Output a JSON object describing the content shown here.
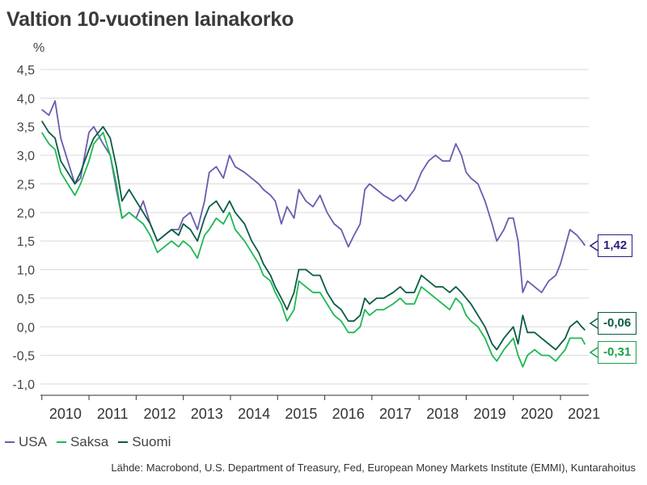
{
  "title": "Valtion 10-vuotinen lainakorko",
  "source": "Lähde: Macrobond, U.S. Department of Treasury, Fed, European Money Markets Institute (EMMI), Kuntarahoitus",
  "chart_data": {
    "type": "line",
    "title": "Valtion 10-vuotinen lainakorko",
    "ylabel": "%",
    "xlabel": "",
    "ylim": [
      -1.0,
      4.5
    ],
    "xlim": [
      2009.97,
      2021.6
    ],
    "yticks": [
      "-1,0",
      "-0,5",
      "0,0",
      "0,5",
      "1,0",
      "1,5",
      "2,0",
      "2,5",
      "3,0",
      "3,5",
      "4,0",
      "4,5"
    ],
    "xticks": [
      "2010",
      "2011",
      "2012",
      "2013",
      "2014",
      "2015",
      "2016",
      "2017",
      "2018",
      "2019",
      "2020",
      "2021"
    ],
    "grid": true,
    "legend": "bottom-left",
    "series": [
      {
        "name": "USA",
        "color": "#6b5bb0",
        "end_label": "1,42",
        "label_color": "#2a1f7a",
        "points": [
          [
            2010.0,
            3.8
          ],
          [
            2010.15,
            3.7
          ],
          [
            2010.28,
            3.95
          ],
          [
            2010.4,
            3.3
          ],
          [
            2010.55,
            2.9
          ],
          [
            2010.7,
            2.5
          ],
          [
            2010.82,
            2.6
          ],
          [
            2011.0,
            3.4
          ],
          [
            2011.1,
            3.5
          ],
          [
            2011.3,
            3.2
          ],
          [
            2011.45,
            3.0
          ],
          [
            2011.58,
            2.4
          ],
          [
            2011.7,
            1.9
          ],
          [
            2011.85,
            2.0
          ],
          [
            2012.0,
            1.9
          ],
          [
            2012.15,
            2.2
          ],
          [
            2012.3,
            1.8
          ],
          [
            2012.45,
            1.5
          ],
          [
            2012.6,
            1.6
          ],
          [
            2012.75,
            1.7
          ],
          [
            2012.9,
            1.7
          ],
          [
            2013.0,
            1.9
          ],
          [
            2013.15,
            2.0
          ],
          [
            2013.3,
            1.7
          ],
          [
            2013.45,
            2.2
          ],
          [
            2013.55,
            2.7
          ],
          [
            2013.7,
            2.8
          ],
          [
            2013.85,
            2.6
          ],
          [
            2013.98,
            3.0
          ],
          [
            2014.1,
            2.8
          ],
          [
            2014.3,
            2.7
          ],
          [
            2014.45,
            2.6
          ],
          [
            2014.6,
            2.5
          ],
          [
            2014.7,
            2.4
          ],
          [
            2014.85,
            2.3
          ],
          [
            2014.95,
            2.2
          ],
          [
            2015.08,
            1.8
          ],
          [
            2015.2,
            2.1
          ],
          [
            2015.35,
            1.9
          ],
          [
            2015.45,
            2.4
          ],
          [
            2015.6,
            2.2
          ],
          [
            2015.75,
            2.1
          ],
          [
            2015.9,
            2.3
          ],
          [
            2016.05,
            2.0
          ],
          [
            2016.2,
            1.8
          ],
          [
            2016.35,
            1.7
          ],
          [
            2016.5,
            1.4
          ],
          [
            2016.62,
            1.6
          ],
          [
            2016.75,
            1.8
          ],
          [
            2016.85,
            2.4
          ],
          [
            2016.95,
            2.5
          ],
          [
            2017.1,
            2.4
          ],
          [
            2017.25,
            2.3
          ],
          [
            2017.45,
            2.2
          ],
          [
            2017.6,
            2.3
          ],
          [
            2017.72,
            2.2
          ],
          [
            2017.9,
            2.4
          ],
          [
            2018.05,
            2.7
          ],
          [
            2018.2,
            2.9
          ],
          [
            2018.35,
            3.0
          ],
          [
            2018.5,
            2.9
          ],
          [
            2018.65,
            2.9
          ],
          [
            2018.78,
            3.2
          ],
          [
            2018.9,
            3.0
          ],
          [
            2019.0,
            2.7
          ],
          [
            2019.1,
            2.6
          ],
          [
            2019.25,
            2.5
          ],
          [
            2019.4,
            2.2
          ],
          [
            2019.55,
            1.8
          ],
          [
            2019.65,
            1.5
          ],
          [
            2019.8,
            1.7
          ],
          [
            2019.9,
            1.9
          ],
          [
            2020.0,
            1.9
          ],
          [
            2020.1,
            1.5
          ],
          [
            2020.2,
            0.6
          ],
          [
            2020.3,
            0.8
          ],
          [
            2020.45,
            0.7
          ],
          [
            2020.6,
            0.6
          ],
          [
            2020.75,
            0.8
          ],
          [
            2020.9,
            0.9
          ],
          [
            2021.0,
            1.1
          ],
          [
            2021.1,
            1.4
          ],
          [
            2021.2,
            1.7
          ],
          [
            2021.35,
            1.6
          ],
          [
            2021.45,
            1.5
          ],
          [
            2021.52,
            1.42
          ]
        ]
      },
      {
        "name": "Saksa",
        "color": "#1db954",
        "end_label": "-0,31",
        "label_color": "#1aa04a",
        "points": [
          [
            2010.0,
            3.4
          ],
          [
            2010.15,
            3.2
          ],
          [
            2010.28,
            3.1
          ],
          [
            2010.4,
            2.7
          ],
          [
            2010.55,
            2.5
          ],
          [
            2010.7,
            2.3
          ],
          [
            2010.82,
            2.5
          ],
          [
            2011.0,
            2.9
          ],
          [
            2011.1,
            3.2
          ],
          [
            2011.3,
            3.4
          ],
          [
            2011.45,
            3.0
          ],
          [
            2011.58,
            2.5
          ],
          [
            2011.7,
            1.9
          ],
          [
            2011.85,
            2.0
          ],
          [
            2012.0,
            1.9
          ],
          [
            2012.15,
            1.8
          ],
          [
            2012.3,
            1.6
          ],
          [
            2012.45,
            1.3
          ],
          [
            2012.6,
            1.4
          ],
          [
            2012.75,
            1.5
          ],
          [
            2012.9,
            1.4
          ],
          [
            2013.0,
            1.5
          ],
          [
            2013.15,
            1.4
          ],
          [
            2013.3,
            1.2
          ],
          [
            2013.45,
            1.6
          ],
          [
            2013.55,
            1.7
          ],
          [
            2013.7,
            1.9
          ],
          [
            2013.85,
            1.8
          ],
          [
            2013.98,
            2.0
          ],
          [
            2014.1,
            1.7
          ],
          [
            2014.3,
            1.5
          ],
          [
            2014.45,
            1.3
          ],
          [
            2014.6,
            1.1
          ],
          [
            2014.7,
            0.9
          ],
          [
            2014.85,
            0.8
          ],
          [
            2014.95,
            0.6
          ],
          [
            2015.08,
            0.4
          ],
          [
            2015.2,
            0.1
          ],
          [
            2015.35,
            0.3
          ],
          [
            2015.45,
            0.8
          ],
          [
            2015.6,
            0.7
          ],
          [
            2015.75,
            0.6
          ],
          [
            2015.9,
            0.6
          ],
          [
            2016.05,
            0.4
          ],
          [
            2016.2,
            0.2
          ],
          [
            2016.35,
            0.1
          ],
          [
            2016.5,
            -0.1
          ],
          [
            2016.62,
            -0.1
          ],
          [
            2016.75,
            0.0
          ],
          [
            2016.85,
            0.3
          ],
          [
            2016.95,
            0.2
          ],
          [
            2017.1,
            0.3
          ],
          [
            2017.25,
            0.3
          ],
          [
            2017.45,
            0.4
          ],
          [
            2017.6,
            0.5
          ],
          [
            2017.72,
            0.4
          ],
          [
            2017.9,
            0.4
          ],
          [
            2018.05,
            0.7
          ],
          [
            2018.2,
            0.6
          ],
          [
            2018.35,
            0.5
          ],
          [
            2018.5,
            0.4
          ],
          [
            2018.65,
            0.3
          ],
          [
            2018.78,
            0.5
          ],
          [
            2018.9,
            0.4
          ],
          [
            2019.0,
            0.2
          ],
          [
            2019.1,
            0.1
          ],
          [
            2019.25,
            0.0
          ],
          [
            2019.4,
            -0.2
          ],
          [
            2019.55,
            -0.5
          ],
          [
            2019.65,
            -0.6
          ],
          [
            2019.8,
            -0.4
          ],
          [
            2019.9,
            -0.3
          ],
          [
            2020.0,
            -0.2
          ],
          [
            2020.1,
            -0.5
          ],
          [
            2020.2,
            -0.7
          ],
          [
            2020.3,
            -0.5
          ],
          [
            2020.45,
            -0.4
          ],
          [
            2020.6,
            -0.5
          ],
          [
            2020.75,
            -0.5
          ],
          [
            2020.9,
            -0.6
          ],
          [
            2021.0,
            -0.5
          ],
          [
            2021.1,
            -0.4
          ],
          [
            2021.2,
            -0.2
          ],
          [
            2021.35,
            -0.2
          ],
          [
            2021.45,
            -0.2
          ],
          [
            2021.52,
            -0.31
          ]
        ]
      },
      {
        "name": "Suomi",
        "color": "#0b5b46",
        "end_label": "-0,06",
        "label_color": "#0b5b46",
        "points": [
          [
            2010.0,
            3.6
          ],
          [
            2010.15,
            3.4
          ],
          [
            2010.28,
            3.3
          ],
          [
            2010.4,
            2.9
          ],
          [
            2010.55,
            2.7
          ],
          [
            2010.7,
            2.5
          ],
          [
            2010.82,
            2.7
          ],
          [
            2011.0,
            3.1
          ],
          [
            2011.1,
            3.3
          ],
          [
            2011.3,
            3.5
          ],
          [
            2011.45,
            3.3
          ],
          [
            2011.58,
            2.8
          ],
          [
            2011.7,
            2.2
          ],
          [
            2011.85,
            2.4
          ],
          [
            2012.0,
            2.2
          ],
          [
            2012.15,
            2.0
          ],
          [
            2012.3,
            1.8
          ],
          [
            2012.45,
            1.5
          ],
          [
            2012.6,
            1.6
          ],
          [
            2012.75,
            1.7
          ],
          [
            2012.9,
            1.6
          ],
          [
            2013.0,
            1.8
          ],
          [
            2013.15,
            1.7
          ],
          [
            2013.3,
            1.5
          ],
          [
            2013.45,
            1.9
          ],
          [
            2013.55,
            2.1
          ],
          [
            2013.7,
            2.2
          ],
          [
            2013.85,
            2.0
          ],
          [
            2013.98,
            2.2
          ],
          [
            2014.1,
            2.0
          ],
          [
            2014.3,
            1.8
          ],
          [
            2014.45,
            1.5
          ],
          [
            2014.6,
            1.3
          ],
          [
            2014.7,
            1.1
          ],
          [
            2014.85,
            0.9
          ],
          [
            2014.95,
            0.7
          ],
          [
            2015.08,
            0.5
          ],
          [
            2015.2,
            0.3
          ],
          [
            2015.35,
            0.6
          ],
          [
            2015.45,
            1.0
          ],
          [
            2015.6,
            1.0
          ],
          [
            2015.75,
            0.9
          ],
          [
            2015.9,
            0.9
          ],
          [
            2016.05,
            0.6
          ],
          [
            2016.2,
            0.4
          ],
          [
            2016.35,
            0.3
          ],
          [
            2016.5,
            0.1
          ],
          [
            2016.62,
            0.1
          ],
          [
            2016.75,
            0.2
          ],
          [
            2016.85,
            0.5
          ],
          [
            2016.95,
            0.4
          ],
          [
            2017.1,
            0.5
          ],
          [
            2017.25,
            0.5
          ],
          [
            2017.45,
            0.6
          ],
          [
            2017.6,
            0.7
          ],
          [
            2017.72,
            0.6
          ],
          [
            2017.9,
            0.6
          ],
          [
            2018.05,
            0.9
          ],
          [
            2018.2,
            0.8
          ],
          [
            2018.35,
            0.7
          ],
          [
            2018.5,
            0.7
          ],
          [
            2018.65,
            0.6
          ],
          [
            2018.78,
            0.7
          ],
          [
            2018.9,
            0.6
          ],
          [
            2019.0,
            0.5
          ],
          [
            2019.1,
            0.4
          ],
          [
            2019.25,
            0.2
          ],
          [
            2019.4,
            0.0
          ],
          [
            2019.55,
            -0.3
          ],
          [
            2019.65,
            -0.4
          ],
          [
            2019.8,
            -0.2
          ],
          [
            2019.9,
            -0.1
          ],
          [
            2020.0,
            0.0
          ],
          [
            2020.1,
            -0.3
          ],
          [
            2020.2,
            0.2
          ],
          [
            2020.3,
            -0.1
          ],
          [
            2020.45,
            -0.1
          ],
          [
            2020.6,
            -0.2
          ],
          [
            2020.75,
            -0.3
          ],
          [
            2020.9,
            -0.4
          ],
          [
            2021.0,
            -0.3
          ],
          [
            2021.1,
            -0.2
          ],
          [
            2021.2,
            0.0
          ],
          [
            2021.35,
            0.1
          ],
          [
            2021.45,
            0.0
          ],
          [
            2021.52,
            -0.06
          ]
        ]
      }
    ]
  }
}
